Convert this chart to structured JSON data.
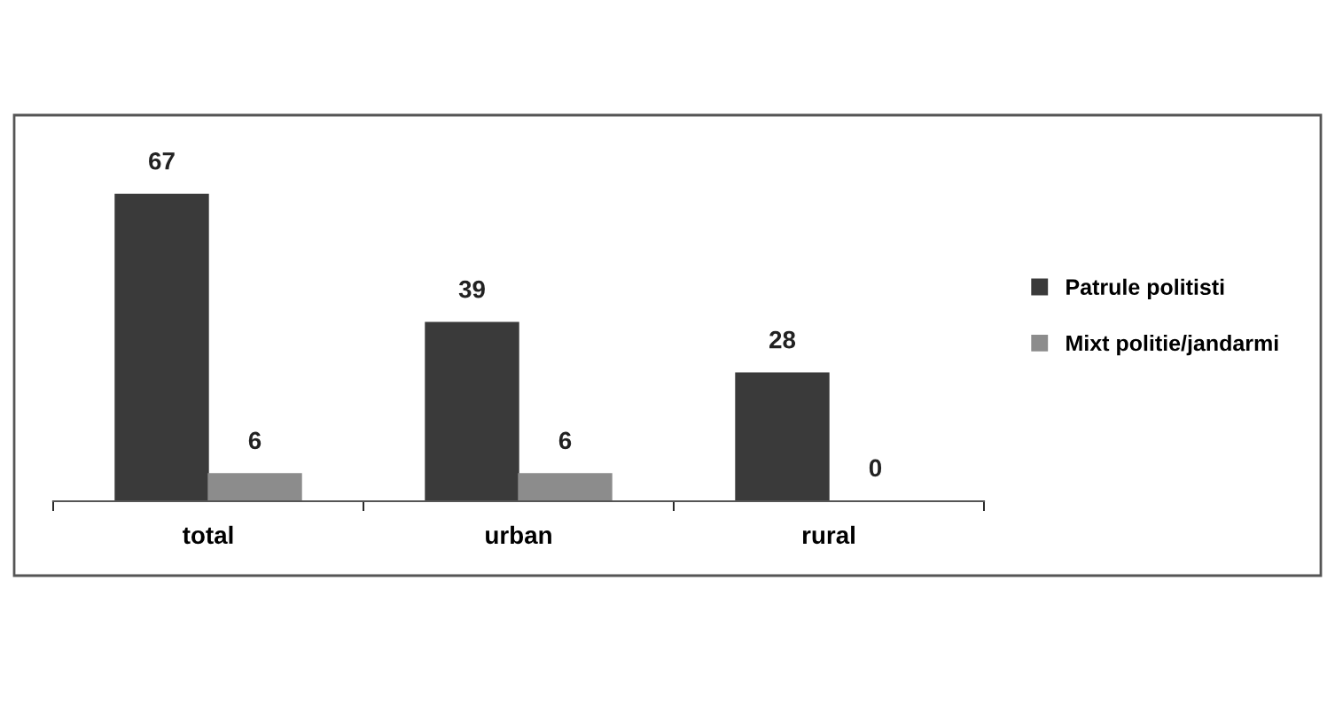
{
  "chart_data": {
    "type": "bar",
    "categories": [
      "total",
      "urban",
      "rural"
    ],
    "series": [
      {
        "name": "Patrule politisti",
        "color": "#3a3a3a",
        "values": [
          67,
          39,
          28
        ]
      },
      {
        "name": "Mixt politie/jandarmi",
        "color": "#8c8c8c",
        "values": [
          6,
          6,
          0
        ]
      }
    ],
    "data_labels": true,
    "legend": "right",
    "grid": false
  }
}
